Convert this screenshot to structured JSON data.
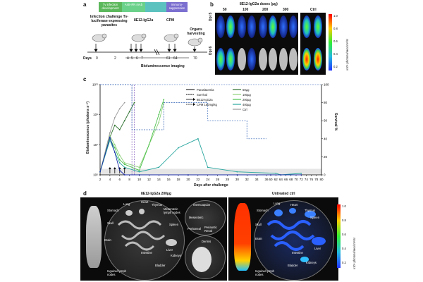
{
  "panel_a": {
    "label": "a",
    "timeline_boxes": [
      {
        "text": "Tv infection development",
        "color": "#5cb85c"
      },
      {
        "text": "Anti-IFN mAb",
        "color": "#6ad18a"
      },
      {
        "text": "Immuno-suppression",
        "color": "#7b6fd0"
      }
    ],
    "infection_label": "Infection challenge Tv-luciferase expressing parasites",
    "treatment_label": "8E12-IgG2a",
    "cpm_label": "CPM",
    "organs_label": "Organs harvesting",
    "imaging_label": "Bioluminescence imaging",
    "days_label": "Days",
    "days": [
      "0",
      "2",
      "4",
      "5",
      "6",
      "7",
      "61",
      "64",
      "70"
    ]
  },
  "panel_b": {
    "label": "b",
    "title": "8E12-IgG2a doses (µg)",
    "doses": [
      "50",
      "100",
      "200",
      "300"
    ],
    "ctrl_label": "Ctrl",
    "row_labels": [
      "Dpi 5",
      "Dpi 6"
    ],
    "colorbar_ticks": [
      "1.0",
      "0.8",
      "0.6",
      "0.4",
      "0.2"
    ],
    "colorbar_unit": "x10⁶ photons/sec/cm²/sr"
  },
  "panel_c": {
    "label": "c",
    "ylabel": "Bioluminescence (photons s⁻¹)",
    "y2label": "Survival %",
    "xlabel": "Days after challenge",
    "legend_left": [
      {
        "name": "Parasitaemia",
        "color": "#000000",
        "style": "solid"
      },
      {
        "name": "Survival",
        "color": "#000000",
        "style": "dashed"
      },
      {
        "name": "8E12-IgG2a",
        "color": "#000000",
        "style": "arrow"
      },
      {
        "name": "CPM 150mg/kg",
        "color": "#000000",
        "style": "arrow-dashed"
      }
    ],
    "legend_right": [
      {
        "name": "50µg",
        "color": "#2a6f2a"
      },
      {
        "name": "100µg",
        "color": "#8ed07a"
      },
      {
        "name": "200µg",
        "color": "#4cc24c"
      },
      {
        "name": "400µg",
        "color": "#2ca7a0"
      },
      {
        "name": "Ctrl",
        "color": "#999999"
      }
    ]
  },
  "panel_d": {
    "label": "d",
    "treated_title": "8E12-IgG2a 200µg",
    "untreated_title": "Untreated ctrl",
    "organs_left": [
      "Lung",
      "Heart",
      "Thymus",
      "Mesenteric lymph nodes",
      "Stomach",
      "Skull",
      "Spleen",
      "Brain",
      "Intestine",
      "Liver",
      "Kidneys",
      "Inguinal lymph nodes",
      "Bladder"
    ],
    "organs_center": [
      "Interscapular",
      "Mesenteric",
      "Periaortic Renal",
      "Peritoneal",
      "Dermis"
    ],
    "organs_right": [
      "Lung",
      "Heart",
      "Stomach",
      "Thymus",
      "Spleen",
      "Skull",
      "Brain",
      "Intestine",
      "Liver",
      "Inguinal lymph nodes",
      "Bladder",
      "Kidneys"
    ],
    "colorbar_ticks": [
      "1.0",
      "0.8",
      "0.6",
      "0.4",
      "0.2"
    ],
    "colorbar_unit": "x10⁶ photons/sec/cm²/sr"
  },
  "chart_data": {
    "type": "line",
    "title": "",
    "xlabel": "Days after challenge",
    "ylabel": "Bioluminescence (photons s⁻¹)",
    "y2label": "Survival %",
    "x_ticks": [
      2,
      4,
      6,
      8,
      10,
      12,
      14,
      16,
      18,
      20,
      22,
      24,
      26,
      28,
      30,
      32,
      34,
      36,
      60,
      62,
      64,
      66,
      68,
      70,
      72,
      74,
      76,
      78,
      80
    ],
    "y_ticks": [
      "10⁵",
      "10⁷",
      "10⁹",
      "10¹¹"
    ],
    "y2_ticks": [
      0,
      20,
      40,
      60,
      80,
      100
    ],
    "ylim_log10": [
      5,
      11
    ],
    "y2lim": [
      0,
      100
    ],
    "arrow_days": [
      4,
      5,
      6,
      7
    ],
    "series": [
      {
        "name": "Ctrl",
        "color": "#999999",
        "x": [
          2,
          4,
          5,
          6,
          7
        ],
        "y_log10": [
          5.2,
          7.8,
          8.8,
          9.4,
          9.8
        ]
      },
      {
        "name": "50µg",
        "color": "#2a6f2a",
        "x": [
          2,
          4,
          5,
          6,
          7,
          8,
          9
        ],
        "y_log10": [
          5.2,
          7.5,
          8.3,
          8.0,
          8.6,
          9.2,
          9.8
        ]
      },
      {
        "name": "100µg",
        "color": "#8ed07a",
        "x": [
          2,
          4,
          5,
          6,
          7,
          10,
          14,
          15
        ],
        "y_log10": [
          5.2,
          7.6,
          7.0,
          6.3,
          5.8,
          5.5,
          8.5,
          9.8
        ]
      },
      {
        "name": "200µg",
        "color": "#4cc24c",
        "x": [
          2,
          4,
          5,
          6,
          7,
          10,
          12,
          14,
          15
        ],
        "y_log10": [
          5.2,
          7.4,
          6.8,
          6.0,
          5.7,
          5.3,
          7.0,
          9.0,
          10.0
        ]
      },
      {
        "name": "400µg",
        "color": "#2ca7a0",
        "x": [
          2,
          4,
          5,
          6,
          7,
          10,
          14,
          18,
          22,
          24,
          30,
          62,
          64,
          72
        ],
        "y_log10": [
          5.2,
          7.3,
          6.5,
          5.8,
          5.5,
          5.2,
          5.5,
          6.8,
          7.4,
          5.5,
          5.2,
          5.1,
          5.0,
          5.1
        ]
      },
      {
        "name": "8E12-IgG2a",
        "color": "#1a2aa8",
        "x": [
          2,
          4,
          5,
          6,
          7,
          10,
          20,
          30,
          60,
          64,
          72
        ],
        "y_log10": [
          5.2,
          7.5,
          6.5,
          5.3,
          5.0,
          5.0,
          5.0,
          5.0,
          5.0,
          5.0,
          5.0
        ]
      },
      {
        "name": "Survival",
        "color": "#2c5fb3",
        "style": "dashed",
        "x": [
          2,
          8,
          8.5,
          14,
          15,
          22,
          24,
          30,
          32,
          36
        ],
        "y": [
          100,
          100,
          50,
          50,
          80,
          80,
          60,
          60,
          40,
          40
        ]
      }
    ]
  }
}
